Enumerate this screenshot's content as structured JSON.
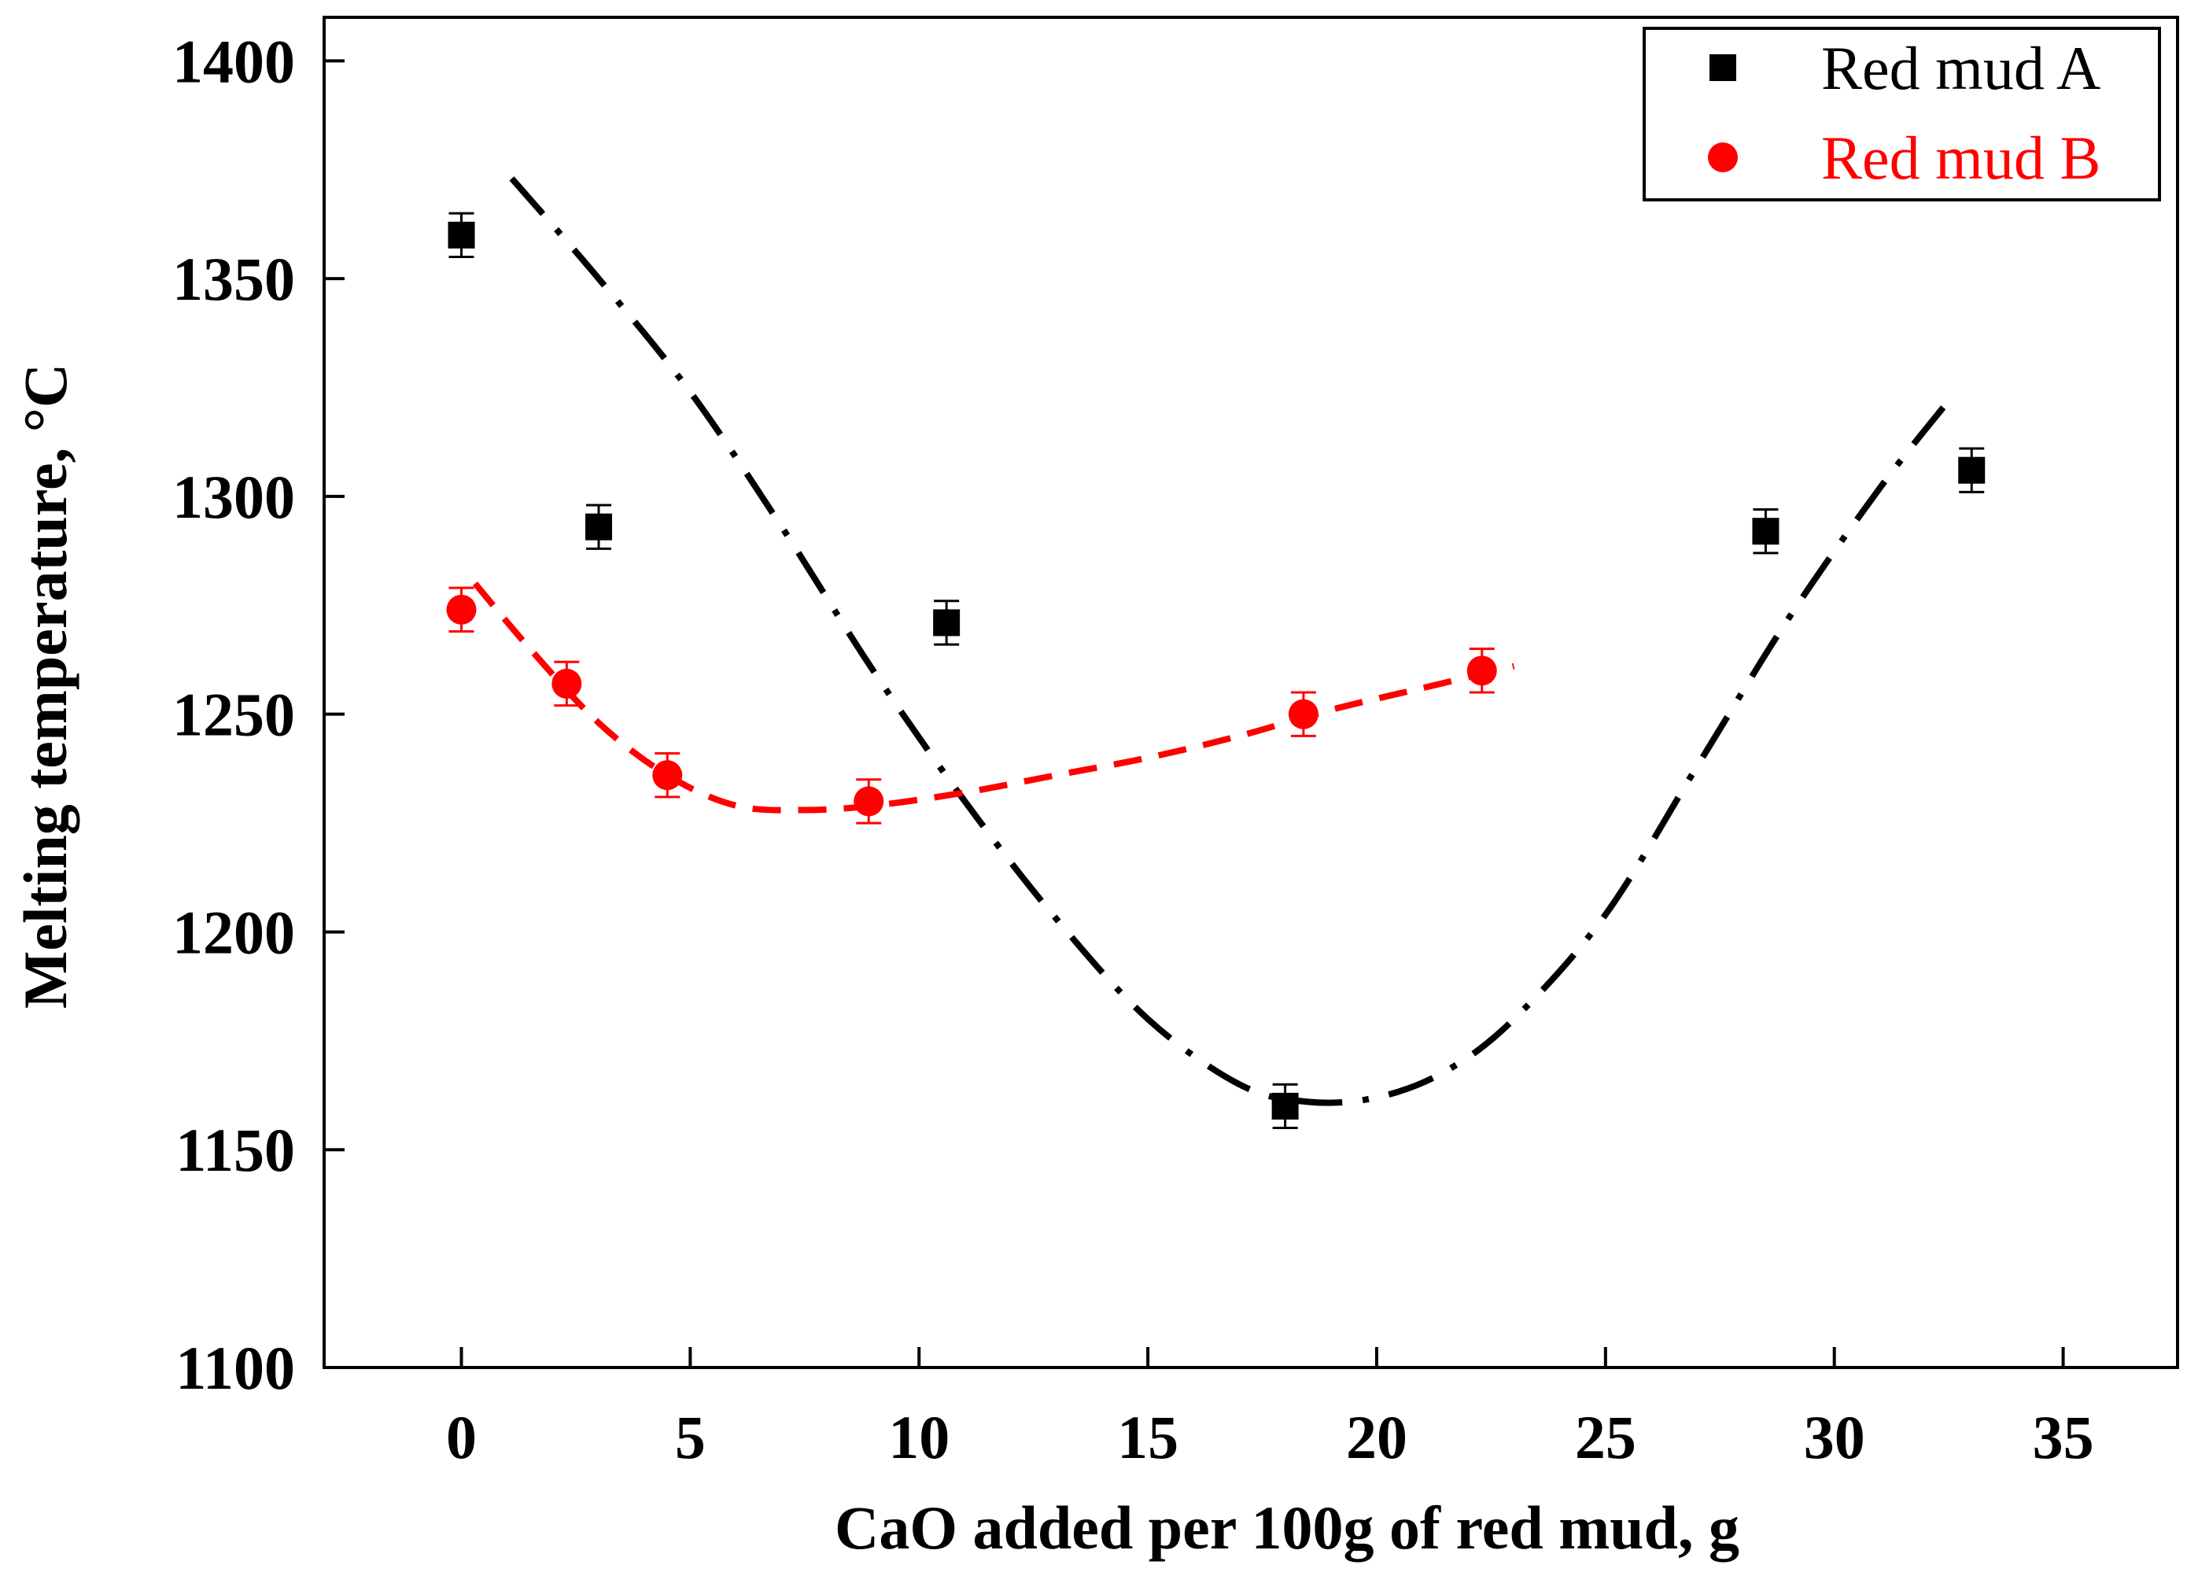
{
  "chart_data": {
    "type": "scatter",
    "title": "",
    "xlabel": "CaO added per 100g of red mud, g",
    "ylabel": "Melting temperature, °C",
    "xlim": [
      -3,
      37.5
    ],
    "ylim": [
      1100,
      1410
    ],
    "xticks": [
      0,
      5,
      10,
      15,
      20,
      25,
      30,
      35
    ],
    "yticks": [
      1100,
      1150,
      1200,
      1250,
      1300,
      1350,
      1400
    ],
    "legend_position": "top-right",
    "series": [
      {
        "name": "Red mud A",
        "color": "#000000",
        "marker": "square",
        "x": [
          0,
          3,
          10.6,
          18,
          28.5,
          33
        ],
        "y": [
          1360,
          1293,
          1271,
          1160,
          1292,
          1306
        ],
        "error": [
          5,
          5,
          5,
          5,
          5,
          5
        ],
        "fit_line": {
          "style": "dash-dot",
          "x": [
            1.1,
            3,
            5,
            7,
            9,
            11,
            13,
            15,
            17,
            18.5,
            20,
            21.5,
            23,
            25,
            27,
            29,
            31,
            32.5
          ],
          "y": [
            1373,
            1350,
            1324,
            1293,
            1260,
            1230,
            1203,
            1180,
            1165,
            1161,
            1162,
            1168,
            1180,
            1204,
            1238,
            1272,
            1302,
            1322
          ]
        }
      },
      {
        "name": "Red mud B",
        "color": "#ff0000",
        "marker": "circle",
        "x": [
          0,
          2.3,
          4.5,
          8.9,
          18.4,
          22.3
        ],
        "y": [
          1274,
          1257,
          1236,
          1230,
          1250,
          1260
        ],
        "error": [
          5,
          5,
          5,
          5,
          5,
          5
        ],
        "fit_line": {
          "style": "dashed",
          "x": [
            0.3,
            1.5,
            3,
            4.5,
            6,
            7.5,
            9,
            11,
            13,
            15,
            17,
            19,
            21,
            23
          ],
          "y": [
            1280,
            1265,
            1248,
            1236,
            1229,
            1228,
            1229,
            1232,
            1236,
            1240,
            1245,
            1251,
            1256,
            1261
          ]
        }
      }
    ]
  }
}
